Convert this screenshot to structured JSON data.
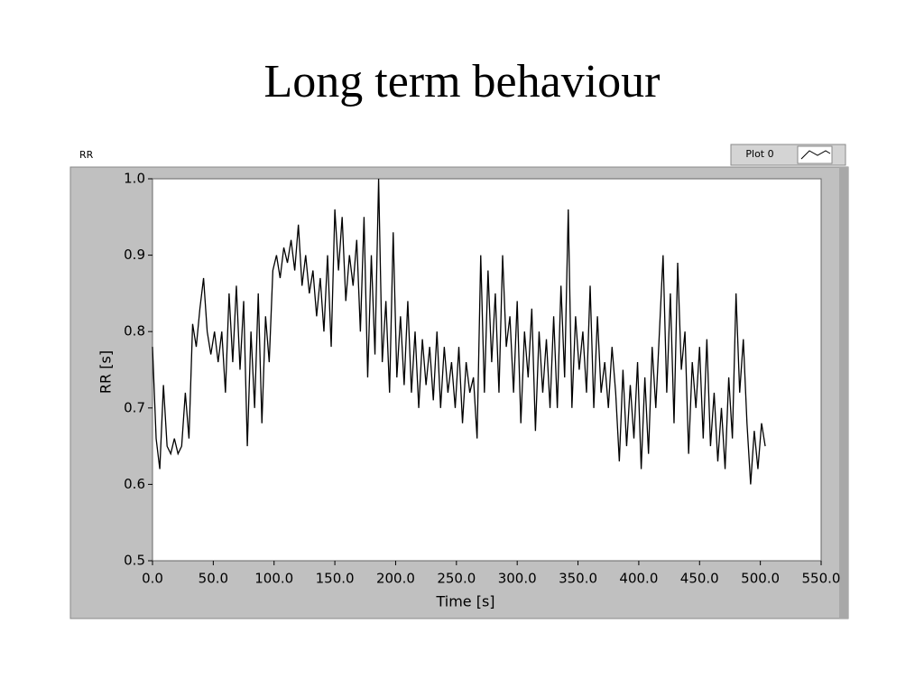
{
  "header": {
    "title": "Long term behaviour"
  },
  "chart_data": {
    "type": "line",
    "title": "RR",
    "legend_label": "Plot 0",
    "x_label": "Time [s]",
    "y_label": "RR [s]",
    "xlim": [
      0,
      550
    ],
    "ylim": [
      0.5,
      1.0
    ],
    "xticks": [
      {
        "value": 0,
        "label": "0.0"
      },
      {
        "value": 50,
        "label": "50.0"
      },
      {
        "value": 100,
        "label": "100.0"
      },
      {
        "value": 150,
        "label": "150.0"
      },
      {
        "value": 200,
        "label": "200.0"
      },
      {
        "value": 250,
        "label": "250.0"
      },
      {
        "value": 300,
        "label": "300.0"
      },
      {
        "value": 350,
        "label": "350.0"
      },
      {
        "value": 400,
        "label": "400.0"
      },
      {
        "value": 450,
        "label": "450.0"
      },
      {
        "value": 500,
        "label": "500.0"
      },
      {
        "value": 550,
        "label": "550.0"
      }
    ],
    "yticks": [
      {
        "value": 0.5,
        "label": "0.5"
      },
      {
        "value": 0.6,
        "label": "0.6"
      },
      {
        "value": 0.7,
        "label": "0.7"
      },
      {
        "value": 0.8,
        "label": "0.8"
      },
      {
        "value": 0.9,
        "label": "0.9"
      },
      {
        "value": 1.0,
        "label": "1.0"
      }
    ],
    "series": [
      {
        "name": "Plot 0",
        "color": "#000000",
        "x": [
          0,
          3,
          6,
          9,
          12,
          15,
          18,
          21,
          24,
          27,
          30,
          33,
          36,
          39,
          42,
          45,
          48,
          51,
          54,
          57,
          60,
          63,
          66,
          69,
          72,
          75,
          78,
          81,
          84,
          87,
          90,
          93,
          96,
          99,
          102,
          105,
          108,
          111,
          114,
          117,
          120,
          123,
          126,
          129,
          132,
          135,
          138,
          141,
          144,
          147,
          150,
          153,
          156,
          159,
          162,
          165,
          168,
          171,
          174,
          177,
          180,
          183,
          186,
          189,
          192,
          195,
          198,
          201,
          204,
          207,
          210,
          213,
          216,
          219,
          222,
          225,
          228,
          231,
          234,
          237,
          240,
          243,
          246,
          249,
          252,
          255,
          258,
          261,
          264,
          267,
          270,
          273,
          276,
          279,
          282,
          285,
          288,
          291,
          294,
          297,
          300,
          303,
          306,
          309,
          312,
          315,
          318,
          321,
          324,
          327,
          330,
          333,
          336,
          339,
          342,
          345,
          348,
          351,
          354,
          357,
          360,
          363,
          366,
          369,
          372,
          375,
          378,
          381,
          384,
          387,
          390,
          393,
          396,
          399,
          402,
          405,
          408,
          411,
          414,
          417,
          420,
          423,
          426,
          429,
          432,
          435,
          438,
          441,
          444,
          447,
          450,
          453,
          456,
          459,
          462,
          465,
          468,
          471,
          474,
          477,
          480,
          483,
          486,
          489,
          492,
          495,
          498,
          501,
          504
        ],
        "values": [
          0.78,
          0.66,
          0.62,
          0.73,
          0.65,
          0.64,
          0.66,
          0.64,
          0.65,
          0.72,
          0.66,
          0.81,
          0.78,
          0.83,
          0.87,
          0.8,
          0.77,
          0.8,
          0.76,
          0.8,
          0.72,
          0.85,
          0.76,
          0.86,
          0.75,
          0.84,
          0.65,
          0.8,
          0.7,
          0.85,
          0.68,
          0.82,
          0.76,
          0.88,
          0.9,
          0.87,
          0.91,
          0.89,
          0.92,
          0.88,
          0.94,
          0.86,
          0.9,
          0.85,
          0.88,
          0.82,
          0.87,
          0.8,
          0.9,
          0.78,
          0.96,
          0.88,
          0.95,
          0.84,
          0.9,
          0.86,
          0.92,
          0.8,
          0.95,
          0.74,
          0.9,
          0.77,
          1.0,
          0.76,
          0.84,
          0.72,
          0.93,
          0.74,
          0.82,
          0.73,
          0.84,
          0.72,
          0.8,
          0.7,
          0.79,
          0.73,
          0.78,
          0.71,
          0.8,
          0.7,
          0.78,
          0.72,
          0.76,
          0.7,
          0.78,
          0.68,
          0.76,
          0.72,
          0.74,
          0.66,
          0.9,
          0.72,
          0.88,
          0.76,
          0.85,
          0.72,
          0.9,
          0.78,
          0.82,
          0.72,
          0.84,
          0.68,
          0.8,
          0.74,
          0.83,
          0.67,
          0.8,
          0.72,
          0.79,
          0.7,
          0.82,
          0.7,
          0.86,
          0.74,
          0.96,
          0.7,
          0.82,
          0.75,
          0.8,
          0.72,
          0.86,
          0.7,
          0.82,
          0.72,
          0.76,
          0.7,
          0.78,
          0.72,
          0.63,
          0.75,
          0.65,
          0.73,
          0.66,
          0.76,
          0.62,
          0.74,
          0.64,
          0.78,
          0.7,
          0.8,
          0.9,
          0.72,
          0.85,
          0.68,
          0.89,
          0.75,
          0.8,
          0.64,
          0.76,
          0.7,
          0.78,
          0.66,
          0.79,
          0.65,
          0.72,
          0.63,
          0.7,
          0.62,
          0.74,
          0.66,
          0.85,
          0.72,
          0.79,
          0.68,
          0.6,
          0.67,
          0.62,
          0.68,
          0.65
        ]
      }
    ]
  }
}
